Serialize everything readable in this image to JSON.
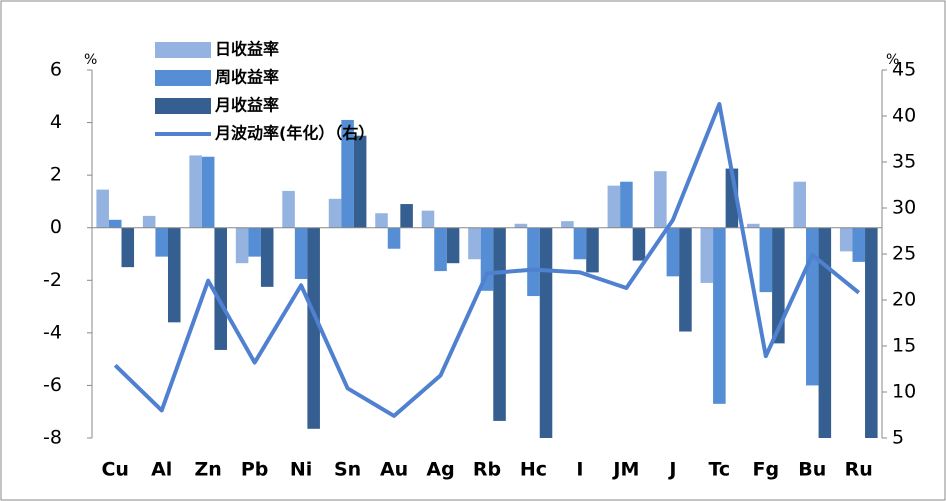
{
  "chart_data": {
    "type": "bar",
    "categories": [
      "Cu",
      "Al",
      "Zn",
      "Pb",
      "Ni",
      "Sn",
      "Au",
      "Ag",
      "Rb",
      "Hc",
      "I",
      "JM",
      "J",
      "Tc",
      "Fg",
      "Bu",
      "Ru"
    ],
    "series": [
      {
        "name": "日收益率",
        "color": "#95b3e1",
        "values": [
          1.45,
          0.45,
          2.75,
          -1.35,
          1.4,
          1.1,
          0.55,
          0.65,
          -1.2,
          0.15,
          0.25,
          1.6,
          2.15,
          -2.1,
          0.15,
          1.75,
          -0.9
        ]
      },
      {
        "name": "周收益率",
        "color": "#558ed5",
        "values": [
          0.3,
          -1.1,
          2.7,
          -1.1,
          -1.95,
          4.1,
          -0.8,
          -1.65,
          -2.4,
          -2.6,
          -1.2,
          1.75,
          -1.85,
          -6.7,
          -2.45,
          -6.0,
          -1.3
        ]
      },
      {
        "name": "月收益率",
        "color": "#365f91",
        "values": [
          -1.5,
          -3.6,
          -4.65,
          -2.25,
          -7.65,
          3.5,
          0.9,
          -1.35,
          -7.35,
          -8.1,
          -1.7,
          -1.25,
          -3.95,
          2.25,
          -4.4,
          -8.2,
          -8.2
        ]
      },
      {
        "name": "月波动率(年化）（右）",
        "color": "#4f81d0",
        "axis": "y2",
        "type": "line",
        "values": [
          12.9,
          8.0,
          22.1,
          13.2,
          21.6,
          10.4,
          7.4,
          11.8,
          22.9,
          23.3,
          23.0,
          21.3,
          28.7,
          41.3,
          13.9,
          24.9,
          20.8
        ]
      }
    ],
    "ylim": [
      -8,
      6
    ],
    "yticks": [
      -8,
      -6,
      -4,
      -2,
      0,
      2,
      4,
      6
    ],
    "y2lim": [
      5,
      45
    ],
    "y2ticks": [
      5,
      10,
      15,
      20,
      25,
      30,
      35,
      40,
      45
    ],
    "y_label": "%",
    "y2_label": "%",
    "legend": "top-left"
  }
}
